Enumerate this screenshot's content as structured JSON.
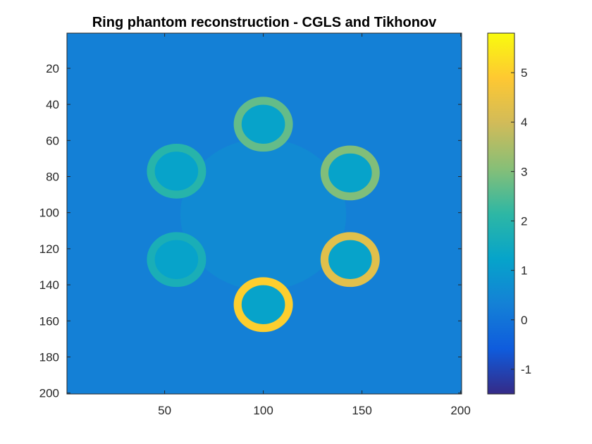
{
  "chart_data": {
    "type": "heatmap",
    "title": "Ring phantom reconstruction - CGLS and Tikhonov",
    "xlabel": "",
    "ylabel": "",
    "xlim": [
      0.5,
      200.5
    ],
    "ylim": [
      0.5,
      200.5
    ],
    "y_reversed": true,
    "x_ticks": [
      50,
      100,
      150,
      200
    ],
    "y_ticks": [
      20,
      40,
      60,
      80,
      100,
      120,
      140,
      160,
      180,
      200
    ],
    "background_value": 0.3,
    "colormap": "parula",
    "colorbar": {
      "range": [
        -1.5,
        5.8
      ],
      "ticks": [
        -1,
        0,
        1,
        2,
        3,
        4,
        5
      ]
    },
    "rings": [
      {
        "x": 100,
        "y": 51,
        "outer_radius": 15,
        "inner_radius": 11,
        "value": 2.7
      },
      {
        "x": 144,
        "y": 78,
        "outer_radius": 15,
        "inner_radius": 11,
        "value": 3.0
      },
      {
        "x": 144,
        "y": 126,
        "outer_radius": 15,
        "inner_radius": 11,
        "value": 4.3
      },
      {
        "x": 100,
        "y": 151,
        "outer_radius": 15,
        "inner_radius": 11,
        "value": 5.0
      },
      {
        "x": 56,
        "y": 126,
        "outer_radius": 15,
        "inner_radius": 11,
        "value": 1.7
      },
      {
        "x": 56,
        "y": 77,
        "outer_radius": 15,
        "inner_radius": 11,
        "value": 2.0
      }
    ],
    "ring_interior_value": 1.2,
    "central_disk": {
      "x": 100,
      "y": 101,
      "radius": 42,
      "value": 0.55
    }
  }
}
